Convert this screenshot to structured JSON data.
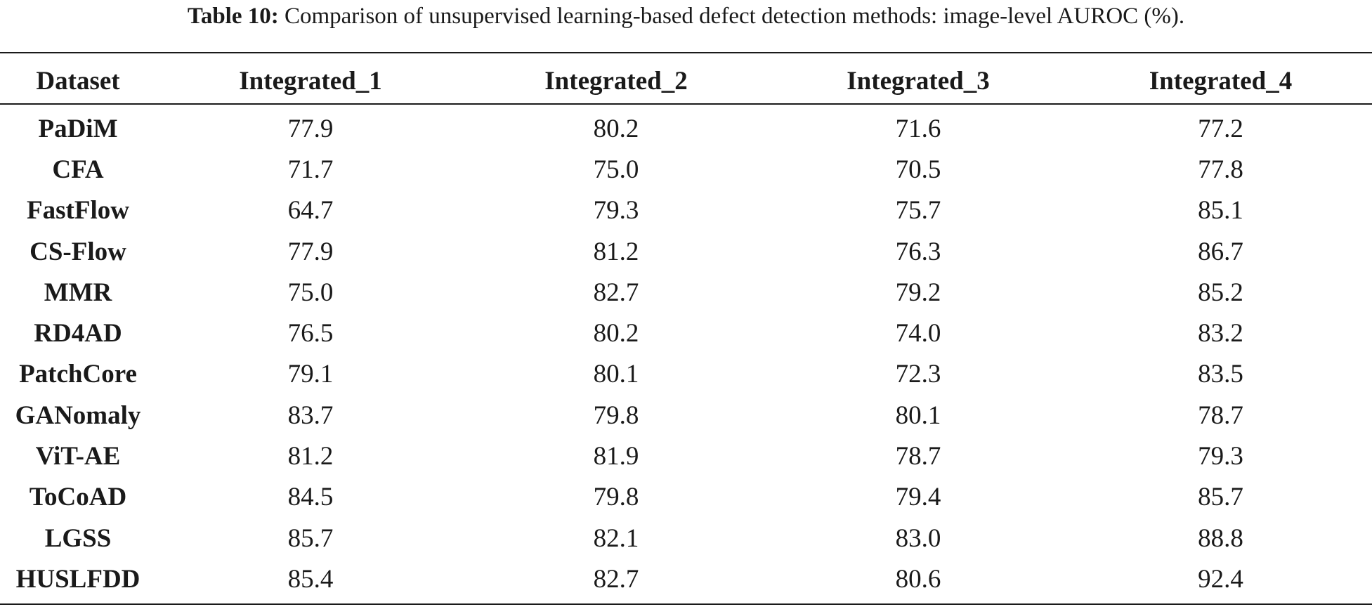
{
  "caption": {
    "label": "Table 10:",
    "text": "Comparison of unsupervised learning-based defect detection methods: image-level AUROC (%)."
  },
  "table": {
    "headers": [
      "Dataset",
      "Integrated_1",
      "Integrated_2",
      "Integrated_3",
      "Integrated_4"
    ],
    "rows": [
      {
        "method": "PaDiM",
        "values": [
          "77.9",
          "80.2",
          "71.6",
          "77.2"
        ]
      },
      {
        "method": "CFA",
        "values": [
          "71.7",
          "75.0",
          "70.5",
          "77.8"
        ]
      },
      {
        "method": "FastFlow",
        "values": [
          "64.7",
          "79.3",
          "75.7",
          "85.1"
        ]
      },
      {
        "method": "CS-Flow",
        "values": [
          "77.9",
          "81.2",
          "76.3",
          "86.7"
        ]
      },
      {
        "method": "MMR",
        "values": [
          "75.0",
          "82.7",
          "79.2",
          "85.2"
        ]
      },
      {
        "method": "RD4AD",
        "values": [
          "76.5",
          "80.2",
          "74.0",
          "83.2"
        ]
      },
      {
        "method": "PatchCore",
        "values": [
          "79.1",
          "80.1",
          "72.3",
          "83.5"
        ]
      },
      {
        "method": "GANomaly",
        "values": [
          "83.7",
          "79.8",
          "80.1",
          "78.7"
        ]
      },
      {
        "method": "ViT-AE",
        "values": [
          "81.2",
          "81.9",
          "78.7",
          "79.3"
        ]
      },
      {
        "method": "ToCoAD",
        "values": [
          "84.5",
          "79.8",
          "79.4",
          "85.7"
        ]
      },
      {
        "method": "LGSS",
        "values": [
          "85.7",
          "82.1",
          "83.0",
          "88.8"
        ]
      },
      {
        "method": "HUSLFDD",
        "values": [
          "85.4",
          "82.7",
          "80.6",
          "92.4"
        ]
      }
    ]
  }
}
